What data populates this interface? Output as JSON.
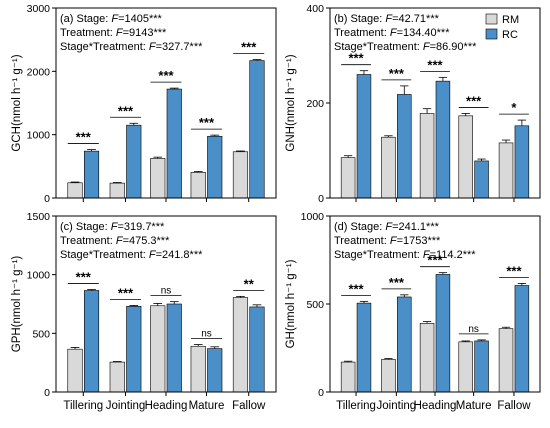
{
  "colors": {
    "RM": "#d9d9d9",
    "RC": "#4a8fc7",
    "stroke": "#000000"
  },
  "legend": {
    "items": [
      {
        "key": "RM",
        "label": "RM"
      },
      {
        "key": "RC",
        "label": "RC"
      }
    ],
    "position": "top-right of panel b"
  },
  "chart_data": [
    {
      "type": "bar",
      "panel": "(a)",
      "ylabel": "GCH(nmol h⁻¹ g⁻¹)",
      "ylim": [
        0,
        3000
      ],
      "yticks": [
        0,
        1000,
        2000,
        3000
      ],
      "categories": [
        "Tillering",
        "Jointing",
        "Heading",
        "Mature",
        "Fallow"
      ],
      "series": [
        {
          "name": "RM",
          "values": [
            240,
            235,
            625,
            405,
            730
          ],
          "errors": [
            12,
            10,
            20,
            15,
            12
          ]
        },
        {
          "name": "RC",
          "values": [
            740,
            1150,
            1720,
            975,
            2170
          ],
          "errors": [
            25,
            30,
            15,
            18,
            15
          ]
        }
      ],
      "significance": [
        "***",
        "***",
        "***",
        "***",
        "***"
      ],
      "stats": [
        {
          "prefix": "Stage: ",
          "F": "F",
          "value": "=1405***"
        },
        {
          "prefix": "Treatment: ",
          "F": "F",
          "value": "=9143***"
        },
        {
          "prefix": "Stage*Treatment: ",
          "F": "F",
          "value": "=327.7***"
        }
      ]
    },
    {
      "type": "bar",
      "panel": "(b)",
      "ylabel": "GNH(nmol h⁻¹ g⁻¹)",
      "ylim": [
        0,
        400
      ],
      "yticks": [
        0,
        200,
        400
      ],
      "categories": [
        "Tillering",
        "Jointing",
        "Heading",
        "Mature",
        "Fallow"
      ],
      "series": [
        {
          "name": "RM",
          "values": [
            85,
            128,
            178,
            173,
            116
          ],
          "errors": [
            4,
            3,
            10,
            5,
            6
          ]
        },
        {
          "name": "RC",
          "values": [
            260,
            218,
            246,
            78,
            152
          ],
          "errors": [
            8,
            18,
            8,
            4,
            12
          ]
        }
      ],
      "significance": [
        "***",
        "***",
        "***",
        "***",
        "*"
      ],
      "stats": [
        {
          "prefix": "Stage: ",
          "F": "F",
          "value": "=42.71***"
        },
        {
          "prefix": "Treatment: ",
          "F": "F",
          "value": "=134.40***"
        },
        {
          "prefix": "Stage*Treatment: ",
          "F": "F",
          "value": "=86.90***"
        }
      ]
    },
    {
      "type": "bar",
      "panel": "(c)",
      "ylabel": "GPH(nmol h⁻¹ g⁻¹)",
      "ylim": [
        0,
        1500
      ],
      "yticks": [
        0,
        500,
        1000,
        1500
      ],
      "categories": [
        "Tillering",
        "Jointing",
        "Heading",
        "Mature",
        "Fallow"
      ],
      "series": [
        {
          "name": "RM",
          "values": [
            365,
            255,
            735,
            390,
            805
          ],
          "errors": [
            15,
            5,
            20,
            15,
            10
          ]
        },
        {
          "name": "RC",
          "values": [
            865,
            730,
            750,
            370,
            725
          ],
          "errors": [
            8,
            8,
            20,
            15,
            18
          ]
        }
      ],
      "significance": [
        "***",
        "***",
        "ns",
        "ns",
        "**"
      ],
      "stats": [
        {
          "prefix": "Stage: ",
          "F": "F",
          "value": "=319.7***"
        },
        {
          "prefix": "Treatment: ",
          "F": "F",
          "value": "=475.3***"
        },
        {
          "prefix": "Stage*Treatment: ",
          "F": "F",
          "value": "=241.8***"
        }
      ]
    },
    {
      "type": "bar",
      "panel": "(d)",
      "ylabel": "GH(nmol h⁻¹ g⁻¹)",
      "ylim": [
        0,
        1000
      ],
      "yticks": [
        0,
        500,
        1000
      ],
      "categories": [
        "Tillering",
        "Jointing",
        "Heading",
        "Mature",
        "Fallow"
      ],
      "series": [
        {
          "name": "RM",
          "values": [
            170,
            185,
            390,
            285,
            360
          ],
          "errors": [
            5,
            5,
            10,
            5,
            8
          ]
        },
        {
          "name": "RC",
          "values": [
            505,
            540,
            668,
            290,
            605
          ],
          "errors": [
            10,
            12,
            10,
            6,
            12
          ]
        }
      ],
      "significance": [
        "***",
        "***",
        "***",
        "ns",
        "***"
      ],
      "stats": [
        {
          "prefix": "Stage: ",
          "F": "F",
          "value": "=241.1***"
        },
        {
          "prefix": "Treatment: ",
          "F": "F",
          "value": "=1753***"
        },
        {
          "prefix": "Stage*Treatment: ",
          "F": "F",
          "value": "=114.2***"
        }
      ]
    }
  ]
}
